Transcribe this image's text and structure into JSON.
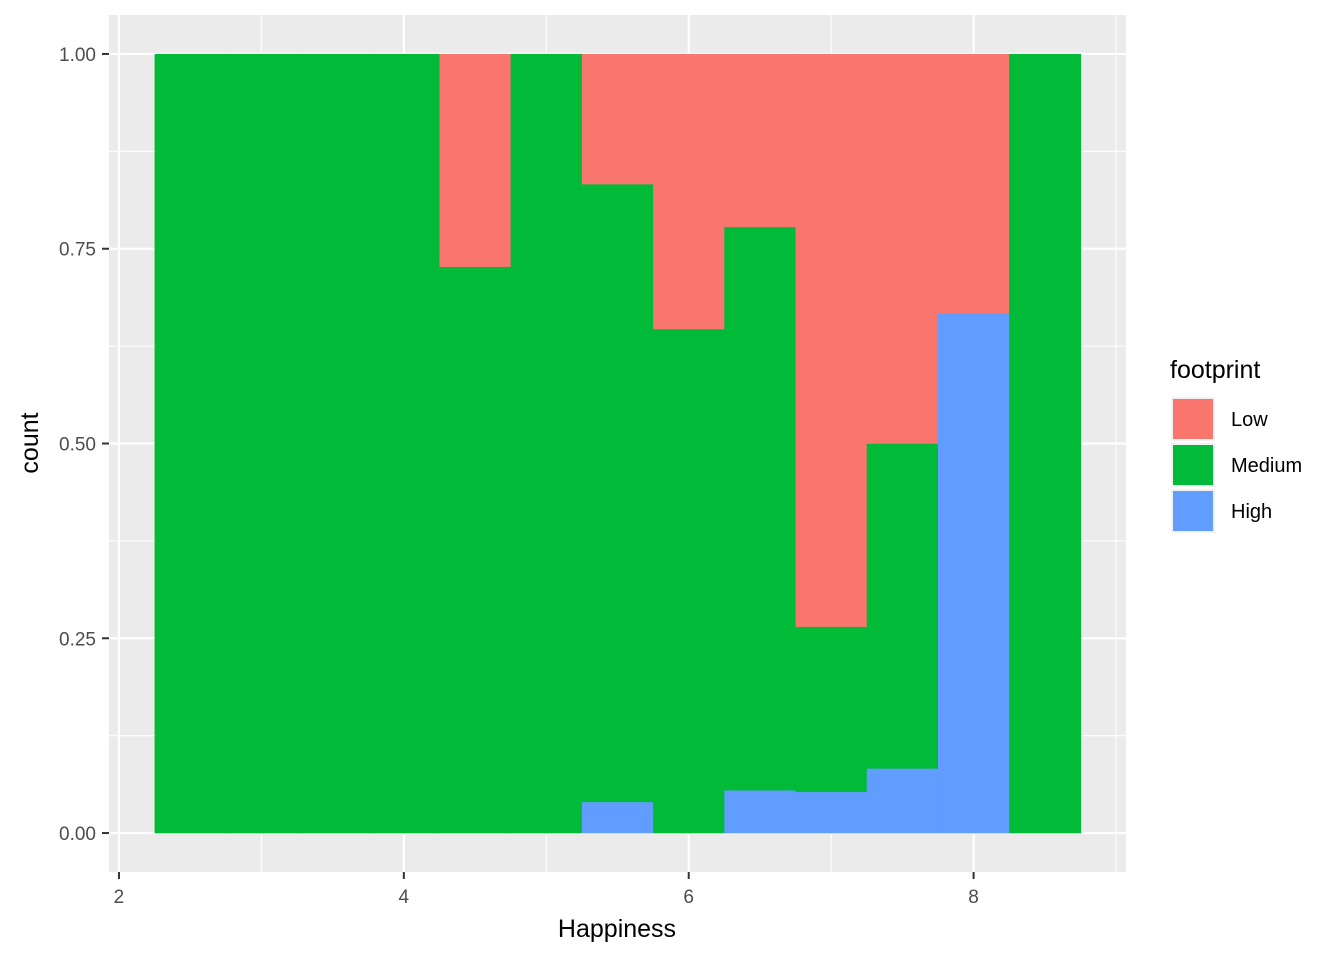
{
  "chart_data": {
    "type": "bar",
    "subtype": "filled-histogram",
    "title": "",
    "xlabel": "Happiness",
    "ylabel": "count",
    "xlim": [
      1.93,
      9.07
    ],
    "ylim": [
      -0.05,
      1.05
    ],
    "x_ticks": [
      2,
      4,
      6,
      8
    ],
    "x_tick_labels": [
      "2",
      "4",
      "6",
      "8"
    ],
    "y_ticks": [
      0,
      0.25,
      0.5,
      0.75,
      1.0
    ],
    "y_tick_labels": [
      "0.00",
      "0.25",
      "0.50",
      "0.75",
      "1.00"
    ],
    "grid": true,
    "legend": {
      "title": "footprint",
      "placement": "right"
    },
    "binwidth": 0.5,
    "bins": [
      2.5,
      3.0,
      3.5,
      4.0,
      4.5,
      5.0,
      5.5,
      6.0,
      6.5,
      7.0,
      7.5,
      8.0,
      8.5
    ],
    "series": [
      {
        "name": "High",
        "color": "#619CFF",
        "values": [
          0,
          0,
          0,
          0,
          0,
          0,
          0.04,
          0,
          0.055,
          0.053,
          0.083,
          0.667,
          0
        ]
      },
      {
        "name": "Medium",
        "color": "#00BA38",
        "values": [
          1.0,
          1.0,
          1.0,
          1.0,
          0.727,
          1.0,
          0.793,
          0.647,
          0.723,
          0.212,
          0.417,
          0,
          1.0
        ]
      },
      {
        "name": "Low",
        "color": "#F8766D",
        "values": [
          0,
          0,
          0,
          0,
          0.273,
          0,
          0.167,
          0.353,
          0.222,
          0.735,
          0.5,
          0.333,
          0
        ]
      }
    ],
    "legend_order": [
      "Low",
      "Medium",
      "High"
    ]
  }
}
